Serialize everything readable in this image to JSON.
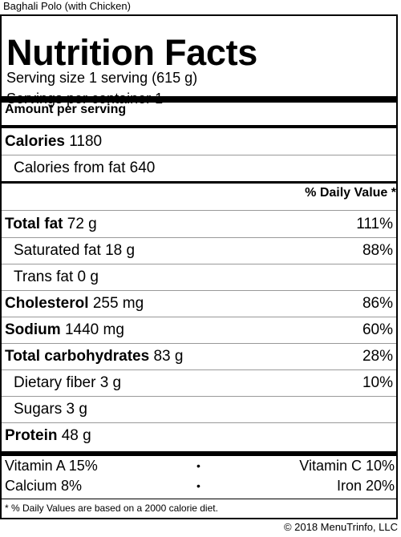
{
  "dish_name": "Baghali Polo (with Chicken)",
  "title": "Nutrition Facts",
  "serving_size": "Serving size 1 serving (615 g)",
  "servings_per_container": "Servings per container 1",
  "amount_per_serving": "Amount per serving",
  "calories": {
    "label": "Calories",
    "value": "1180"
  },
  "calories_from_fat": "Calories from fat 640",
  "daily_value_header": "% Daily Value *",
  "nutrients": [
    {
      "label": "Total fat",
      "amount": "72 g",
      "dv": "111%"
    },
    {
      "label": "Saturated fat",
      "amount": "18 g",
      "dv": "88%"
    },
    {
      "label": "Trans fat",
      "amount": "0 g",
      "dv": ""
    },
    {
      "label": "Cholesterol",
      "amount": "255 mg",
      "dv": "86%"
    },
    {
      "label": "Sodium",
      "amount": "1440 mg",
      "dv": "60%"
    },
    {
      "label": "Total carbohydrates",
      "amount": "83 g",
      "dv": "28%"
    },
    {
      "label": "Dietary fiber",
      "amount": "3 g",
      "dv": "10%"
    },
    {
      "label": "Sugars",
      "amount": "3 g",
      "dv": ""
    },
    {
      "label": "Protein",
      "amount": "48 g",
      "dv": ""
    }
  ],
  "vitamins": {
    "vitamin_a": "Vitamin A 15%",
    "vitamin_c": "Vitamin C 10%",
    "calcium": "Calcium 8%",
    "iron": "Iron 20%",
    "separator": "•"
  },
  "footnote": "* % Daily Values are based on a 2000 calorie diet.",
  "copyright": "© 2018 MenuTrinfo, LLC"
}
